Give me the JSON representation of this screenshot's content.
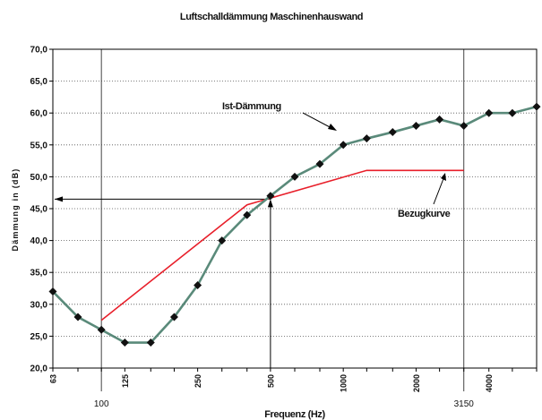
{
  "chart_data": {
    "type": "line",
    "title": "Luftschalldämmung Maschinenhauswand",
    "xlabel": "Frequenz (Hz)",
    "ylabel": "Dämmung in (dB)",
    "ylim": [
      20,
      70
    ],
    "x_scale": "log",
    "x_ticks": [
      63,
      125,
      250,
      500,
      1000,
      2000,
      4000
    ],
    "x_extra_labels": [
      100,
      3150
    ],
    "y_ticks": [
      "20,0",
      "25,0",
      "30,0",
      "35,0",
      "40,0",
      "45,0",
      "50,0",
      "55,0",
      "60,0",
      "65,0",
      "70,0"
    ],
    "grid": "horizontal dotted",
    "series": [
      {
        "name": "Ist-Dämmung",
        "color": "#5a8a7a",
        "marker": "diamond",
        "x": [
          63,
          80,
          100,
          125,
          160,
          200,
          250,
          315,
          400,
          500,
          630,
          800,
          1000,
          1250,
          1600,
          2000,
          2500,
          3150,
          4000,
          5000,
          6300
        ],
        "values": [
          32,
          28,
          26,
          24,
          24,
          28,
          33,
          40,
          44,
          47,
          50,
          52,
          55,
          56,
          57,
          58,
          59,
          58,
          60,
          60,
          61
        ]
      },
      {
        "name": "Bezugkurve",
        "color": "#e81f2a",
        "x": [
          100,
          400,
          1250,
          3150
        ],
        "values": [
          27.5,
          45.6,
          51,
          51
        ]
      }
    ],
    "annotations": [
      {
        "text": "Ist-Dämmung"
      },
      {
        "text": "Bezugkurve"
      }
    ],
    "reference_lines": {
      "vertical_at": [
        100,
        500,
        3150
      ],
      "horizontal_at": 46.5
    }
  }
}
